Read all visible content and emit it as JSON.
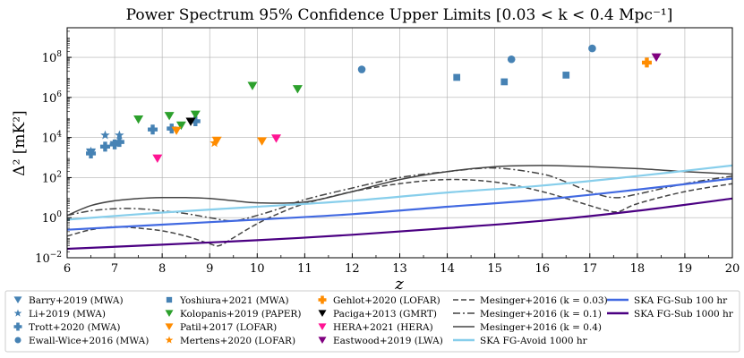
{
  "chart_data": {
    "type": "scatter",
    "title": "Power Spectrum 95% Confidence Upper Limits [0.03 < k < 0.4 Mpc⁻¹]",
    "xlabel": "z",
    "ylabel": "Δ² [mK²]",
    "xlim": [
      6,
      20
    ],
    "ylim": [
      0.01,
      3000000000
    ],
    "yscale": "log",
    "grid": true,
    "legend_position": "bottom, outside plot",
    "x_ticks": [
      "6",
      "7",
      "8",
      "9",
      "10",
      "11",
      "12",
      "13",
      "14",
      "15",
      "16",
      "17",
      "18",
      "19",
      "20"
    ],
    "y_ticks": [
      {
        "value": 0.01,
        "base": "10",
        "exp": "−2"
      },
      {
        "value": 1,
        "base": "10",
        "exp": "0"
      },
      {
        "value": 100,
        "base": "10",
        "exp": "2"
      },
      {
        "value": 10000,
        "base": "10",
        "exp": "4"
      },
      {
        "value": 1000000,
        "base": "10",
        "exp": "6"
      },
      {
        "value": 100000000,
        "base": "10",
        "exp": "8"
      }
    ],
    "points": [
      {
        "name": "Barry+2019 (MWA)",
        "marker": "tri-down",
        "color": "#4682b4",
        "points": [
          [
            6.5,
            1800
          ],
          [
            7.0,
            4200
          ]
        ]
      },
      {
        "name": "Li+2019 (MWA)",
        "marker": "star",
        "color": "#4682b4",
        "points": [
          [
            6.5,
            2000
          ],
          [
            6.8,
            13000
          ],
          [
            7.1,
            13000
          ]
        ]
      },
      {
        "name": "Trott+2020 (MWA)",
        "marker": "plus",
        "color": "#4682b4",
        "points": [
          [
            6.5,
            1600
          ],
          [
            6.8,
            3500
          ],
          [
            7.0,
            4500
          ],
          [
            7.1,
            6000
          ],
          [
            7.8,
            25000
          ],
          [
            8.2,
            28000
          ],
          [
            8.7,
            65000
          ]
        ]
      },
      {
        "name": "Ewall-Wice+2016 (MWA)",
        "marker": "circle",
        "color": "#4682b4",
        "points": [
          [
            12.2,
            25000000
          ],
          [
            15.35,
            80000000
          ],
          [
            17.05,
            280000000
          ]
        ]
      },
      {
        "name": "Yoshiura+2021 (MWA)",
        "marker": "square",
        "color": "#4682b4",
        "points": [
          [
            14.2,
            10000000
          ],
          [
            15.2,
            6000000
          ],
          [
            16.5,
            13000000
          ]
        ]
      },
      {
        "name": "Kolopanis+2019 (PAPER)",
        "marker": "tri-down",
        "color": "#2ca02c",
        "points": [
          [
            7.5,
            80000
          ],
          [
            8.15,
            120000
          ],
          [
            8.4,
            40000
          ],
          [
            8.7,
            140000
          ],
          [
            9.9,
            3800000
          ],
          [
            10.85,
            2600000
          ]
        ]
      },
      {
        "name": "Patil+2017 (LOFAR)",
        "marker": "tri-down",
        "color": "#ff8c00",
        "points": [
          [
            8.3,
            22000
          ],
          [
            9.15,
            7000
          ],
          [
            10.1,
            6500
          ]
        ]
      },
      {
        "name": "Mertens+2020 (LOFAR)",
        "marker": "star",
        "color": "#ff8c00",
        "points": [
          [
            9.1,
            5300
          ]
        ]
      },
      {
        "name": "Gehlot+2020 (LOFAR)",
        "marker": "plus",
        "color": "#ff8c00",
        "points": [
          [
            18.2,
            55000000
          ]
        ]
      },
      {
        "name": "Paciga+2013 (GMRT)",
        "marker": "tri-down",
        "color": "#000000",
        "points": [
          [
            8.6,
            62000
          ]
        ]
      },
      {
        "name": "HERA+2021 (HERA)",
        "marker": "tri-down",
        "color": "#ff1493",
        "points": [
          [
            7.9,
            900
          ],
          [
            10.4,
            9000
          ]
        ]
      },
      {
        "name": "Eastwood+2019 (LWA)",
        "marker": "tri-down",
        "color": "#800080",
        "points": [
          [
            18.4,
            100000000
          ]
        ]
      }
    ],
    "lines": [
      {
        "name": "Mesinger+2016 (k = 0.03)",
        "style": "dashed",
        "color": "#444444",
        "x": [
          6,
          6.5,
          7,
          7.5,
          8,
          8.5,
          9,
          9.2,
          9.5,
          10,
          10.5,
          11,
          12,
          13,
          14,
          15,
          16,
          17,
          17.3,
          17.6,
          18,
          19,
          20
        ],
        "y": [
          0.12,
          0.25,
          0.35,
          0.3,
          0.22,
          0.12,
          0.05,
          0.04,
          0.1,
          0.5,
          1.8,
          5,
          20,
          50,
          80,
          60,
          20,
          4,
          2.5,
          2,
          5,
          20,
          50
        ]
      },
      {
        "name": "Mesinger+2016 (k = 0.1)",
        "style": "dashdot",
        "color": "#444444",
        "x": [
          6,
          6.5,
          7,
          7.5,
          8,
          8.5,
          9,
          9.5,
          10,
          10.5,
          11,
          12,
          13,
          14,
          15,
          16,
          16.5,
          17,
          17.5,
          18,
          19,
          20
        ],
        "y": [
          1.3,
          2.2,
          2.8,
          2.8,
          2.2,
          1.6,
          1,
          0.7,
          1.3,
          3,
          8,
          30,
          100,
          200,
          300,
          150,
          60,
          20,
          10,
          15,
          50,
          120
        ]
      },
      {
        "name": "Mesinger+2016 (k = 0.4)",
        "style": "solid",
        "color": "#444444",
        "x": [
          6,
          6.5,
          7,
          7.5,
          8,
          8.5,
          9,
          9.5,
          10,
          11,
          12,
          13,
          14,
          15,
          16,
          17,
          18,
          19,
          20
        ],
        "y": [
          1.3,
          4,
          7,
          9,
          10,
          10,
          9,
          7,
          5.5,
          6,
          20,
          80,
          200,
          350,
          400,
          350,
          280,
          200,
          150
        ]
      },
      {
        "name": "SKA FG-Avoid 1000 hr",
        "style": "solid",
        "color": "#87ceeb",
        "x": [
          6,
          8,
          10,
          12,
          14,
          16,
          18,
          20
        ],
        "y": [
          0.8,
          1.8,
          3.5,
          7,
          18,
          40,
          120,
          400
        ]
      },
      {
        "name": "SKA FG-Sub 100 hr",
        "style": "solid",
        "color": "#4169e1",
        "x": [
          6,
          8,
          10,
          12,
          14,
          16,
          18,
          20
        ],
        "y": [
          0.25,
          0.45,
          0.8,
          1.5,
          3.5,
          8,
          25,
          90
        ]
      },
      {
        "name": "SKA FG-Sub 1000 hr",
        "style": "solid",
        "color": "#4b0082",
        "x": [
          6,
          8,
          10,
          12,
          14,
          16,
          18,
          20
        ],
        "y": [
          0.028,
          0.045,
          0.075,
          0.14,
          0.3,
          0.7,
          2.2,
          9
        ]
      }
    ]
  }
}
